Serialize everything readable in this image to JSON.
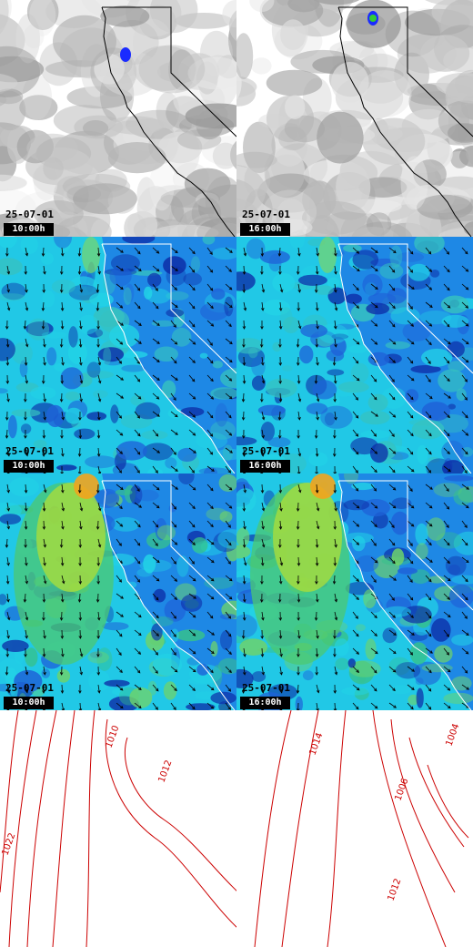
{
  "panels": [
    {
      "row": 0,
      "col": 0,
      "kind": "cloud",
      "date": "25-07-01",
      "time": "10:00h"
    },
    {
      "row": 0,
      "col": 1,
      "kind": "cloud",
      "date": "25-07-01",
      "time": "16:00h"
    },
    {
      "row": 1,
      "col": 0,
      "kind": "wind",
      "date": "25-07-01",
      "time": "10:00h"
    },
    {
      "row": 1,
      "col": 1,
      "kind": "wind",
      "date": "25-07-01",
      "time": "16:00h"
    },
    {
      "row": 2,
      "col": 0,
      "kind": "wind-strong",
      "date": "25-07-01",
      "time": "10:00h"
    },
    {
      "row": 2,
      "col": 1,
      "kind": "wind-strong",
      "date": "25-07-01",
      "time": "16:00h"
    },
    {
      "row": 3,
      "col": 0,
      "kind": "pressure",
      "labels": [
        "1022",
        "1010",
        "1012"
      ]
    },
    {
      "row": 3,
      "col": 1,
      "kind": "pressure",
      "labels": [
        "1014",
        "1006",
        "1004",
        "1012"
      ]
    }
  ],
  "colors": {
    "coast": "#000000",
    "isobar": "#cc0000",
    "wind_base": "#1e88e5",
    "wind_ocean": "#22d3e6",
    "wind_strong": "#ffcc33",
    "precip": "#1a2bff"
  }
}
